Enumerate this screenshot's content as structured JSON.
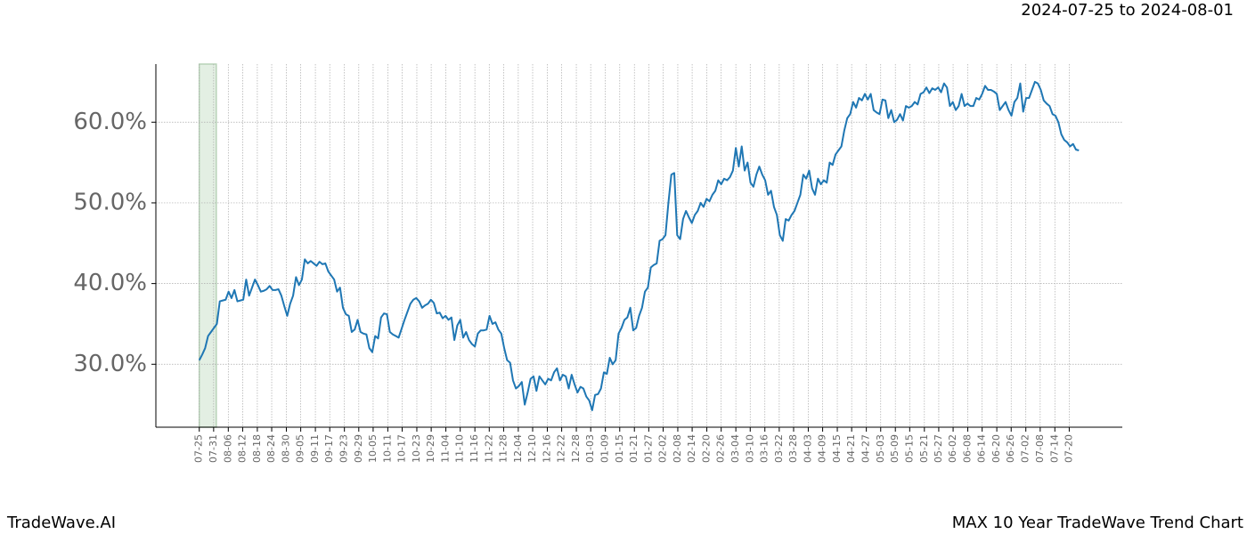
{
  "chart_data": {
    "type": "line",
    "date_range": "2024-07-25 to 2024-08-01",
    "footer_left": "TradeWave.AI",
    "footer_right": "MAX 10 Year TradeWave Trend Chart",
    "highlight_range": [
      0,
      5.8
    ],
    "grid": true,
    "xlim": [
      -14.8,
      314.8
    ],
    "ylim": [
      22.2,
      67.2
    ],
    "yticks": [
      {
        "value": 30,
        "label": "30.0%"
      },
      {
        "value": 40,
        "label": "40.0%"
      },
      {
        "value": 50,
        "label": "50.0%"
      },
      {
        "value": 60,
        "label": "60.0%"
      }
    ],
    "xticks": [
      {
        "value": 0,
        "label": "07-25"
      },
      {
        "value": 4.9,
        "label": "07-31"
      },
      {
        "value": 9.9,
        "label": "08-06"
      },
      {
        "value": 14.8,
        "label": "08-12"
      },
      {
        "value": 19.8,
        "label": "08-18"
      },
      {
        "value": 24.7,
        "label": "08-24"
      },
      {
        "value": 29.7,
        "label": "08-30"
      },
      {
        "value": 34.6,
        "label": "09-05"
      },
      {
        "value": 39.6,
        "label": "09-11"
      },
      {
        "value": 44.5,
        "label": "09-17"
      },
      {
        "value": 49.5,
        "label": "09-23"
      },
      {
        "value": 54.4,
        "label": "09-29"
      },
      {
        "value": 59.3,
        "label": "10-05"
      },
      {
        "value": 64.3,
        "label": "10-11"
      },
      {
        "value": 69.2,
        "label": "10-17"
      },
      {
        "value": 74.2,
        "label": "10-23"
      },
      {
        "value": 79.1,
        "label": "10-29"
      },
      {
        "value": 84.1,
        "label": "11-04"
      },
      {
        "value": 89,
        "label": "11-10"
      },
      {
        "value": 94,
        "label": "11-16"
      },
      {
        "value": 98.9,
        "label": "11-22"
      },
      {
        "value": 103.8,
        "label": "11-28"
      },
      {
        "value": 108.8,
        "label": "12-04"
      },
      {
        "value": 113.7,
        "label": "12-10"
      },
      {
        "value": 118.7,
        "label": "12-16"
      },
      {
        "value": 123.6,
        "label": "12-22"
      },
      {
        "value": 128.6,
        "label": "12-28"
      },
      {
        "value": 133.5,
        "label": "01-03"
      },
      {
        "value": 138.5,
        "label": "01-09"
      },
      {
        "value": 143.4,
        "label": "01-15"
      },
      {
        "value": 148.4,
        "label": "01-21"
      },
      {
        "value": 153.3,
        "label": "01-27"
      },
      {
        "value": 158.2,
        "label": "02-02"
      },
      {
        "value": 163.2,
        "label": "02-08"
      },
      {
        "value": 168.1,
        "label": "02-14"
      },
      {
        "value": 173.1,
        "label": "02-20"
      },
      {
        "value": 178,
        "label": "02-26"
      },
      {
        "value": 183,
        "label": "03-04"
      },
      {
        "value": 187.9,
        "label": "03-10"
      },
      {
        "value": 192.9,
        "label": "03-16"
      },
      {
        "value": 197.8,
        "label": "03-22"
      },
      {
        "value": 202.7,
        "label": "03-28"
      },
      {
        "value": 207.7,
        "label": "04-03"
      },
      {
        "value": 212.6,
        "label": "04-09"
      },
      {
        "value": 217.6,
        "label": "04-15"
      },
      {
        "value": 222.5,
        "label": "04-21"
      },
      {
        "value": 227.5,
        "label": "04-27"
      },
      {
        "value": 232.4,
        "label": "05-03"
      },
      {
        "value": 237.4,
        "label": "05-09"
      },
      {
        "value": 242.3,
        "label": "05-15"
      },
      {
        "value": 247.3,
        "label": "05-21"
      },
      {
        "value": 252.2,
        "label": "05-27"
      },
      {
        "value": 257.1,
        "label": "06-02"
      },
      {
        "value": 262.1,
        "label": "06-08"
      },
      {
        "value": 267,
        "label": "06-14"
      },
      {
        "value": 272,
        "label": "06-20"
      },
      {
        "value": 276.9,
        "label": "06-26"
      },
      {
        "value": 281.9,
        "label": "07-02"
      },
      {
        "value": 286.8,
        "label": "07-08"
      },
      {
        "value": 291.8,
        "label": "07-14"
      },
      {
        "value": 296.7,
        "label": "07-20"
      }
    ],
    "series": [
      {
        "color": "#1f77b4",
        "values": [
          30.5,
          31.2,
          32,
          33.5,
          34,
          34.5,
          35,
          37.8,
          37.9,
          38,
          39,
          38.2,
          39.2,
          37.8,
          37.9,
          38,
          40.5,
          38.5,
          39.5,
          40.5,
          39.8,
          39,
          39.1,
          39.3,
          39.7,
          39.2,
          39.2,
          39.3,
          38.5,
          37.2,
          36,
          37.5,
          38.5,
          40.8,
          39.8,
          40.5,
          43,
          42.5,
          42.8,
          42.5,
          42.2,
          42.7,
          42.4,
          42.5,
          41.5,
          41,
          40.5,
          39,
          39.5,
          37,
          36.2,
          36,
          34,
          34.3,
          35.5,
          34,
          33.8,
          33.7,
          32,
          31.5,
          33.5,
          33.2,
          35.8,
          36.3,
          36.2,
          34,
          33.7,
          33.5,
          33.3,
          34.4,
          35.5,
          36.5,
          37.5,
          38,
          38.2,
          37.8,
          37,
          37.3,
          37.5,
          38,
          37.6,
          36.3,
          36.4,
          35.7,
          36,
          35.5,
          35.8,
          33,
          34.8,
          35.5,
          33.3,
          34,
          33,
          32.5,
          32.2,
          33.8,
          34.2,
          34.2,
          34.3,
          36,
          35,
          35.2,
          34.3,
          33.8,
          32,
          30.5,
          30.2,
          28,
          27,
          27.3,
          27.8,
          25,
          26.5,
          28.2,
          28.5,
          26.7,
          28.5,
          28,
          27.5,
          28.2,
          28,
          29,
          29.5,
          28,
          28.7,
          28.5,
          27,
          28.7,
          27.5,
          26.5,
          27.2,
          27,
          26,
          25.5,
          24.3,
          26.2,
          26.3,
          27,
          29,
          28.8,
          30.8,
          30,
          30.5,
          33.8,
          34.5,
          35.5,
          35.8,
          37,
          34.2,
          34.5,
          36,
          37,
          39,
          39.5,
          42,
          42.3,
          42.5,
          45.3,
          45.5,
          46,
          50,
          53.5,
          53.7,
          46,
          45.5,
          48,
          49,
          48.2,
          47.5,
          48.5,
          49,
          50,
          49.5,
          50.5,
          50.2,
          51,
          51.5,
          52.8,
          52.3,
          53,
          52.8,
          53.2,
          54,
          56.8,
          54.5,
          57,
          54,
          55,
          52.5,
          52,
          53.5,
          54.5,
          53.5,
          52.8,
          51,
          51.5,
          49.5,
          48.5,
          46,
          45.3,
          48,
          47.8,
          48.5,
          49,
          50,
          51,
          53.5,
          53,
          54,
          51.8,
          51,
          53,
          52.3,
          52.8,
          52.5,
          55,
          54.7,
          56,
          56.5,
          57,
          59,
          60.5,
          61,
          62.5,
          61.8,
          63,
          62.7,
          63.5,
          62.8,
          63.5,
          61.5,
          61.2,
          61,
          62.8,
          62.7,
          60.5,
          61.5,
          60,
          60.3,
          61,
          60.2,
          62,
          61.8,
          62,
          62.5,
          62.2,
          63.5,
          63.7,
          64.3,
          63.6,
          64.2,
          64,
          64.3,
          63.7,
          64.8,
          64.3,
          62,
          62.5,
          61.5,
          62,
          63.5,
          62,
          62.3,
          62,
          62,
          63,
          62.8,
          63.5,
          64.5,
          64,
          64,
          63.8,
          63.5,
          61.5,
          62,
          62.5,
          61.5,
          60.8,
          62.5,
          63,
          64.8,
          61.3,
          63,
          63,
          64,
          65,
          64.8,
          64,
          62.7,
          62.3,
          62,
          61,
          60.8,
          60,
          58.5,
          57.8,
          57.5,
          57,
          57.3,
          56.6,
          56.5
        ]
      }
    ]
  }
}
